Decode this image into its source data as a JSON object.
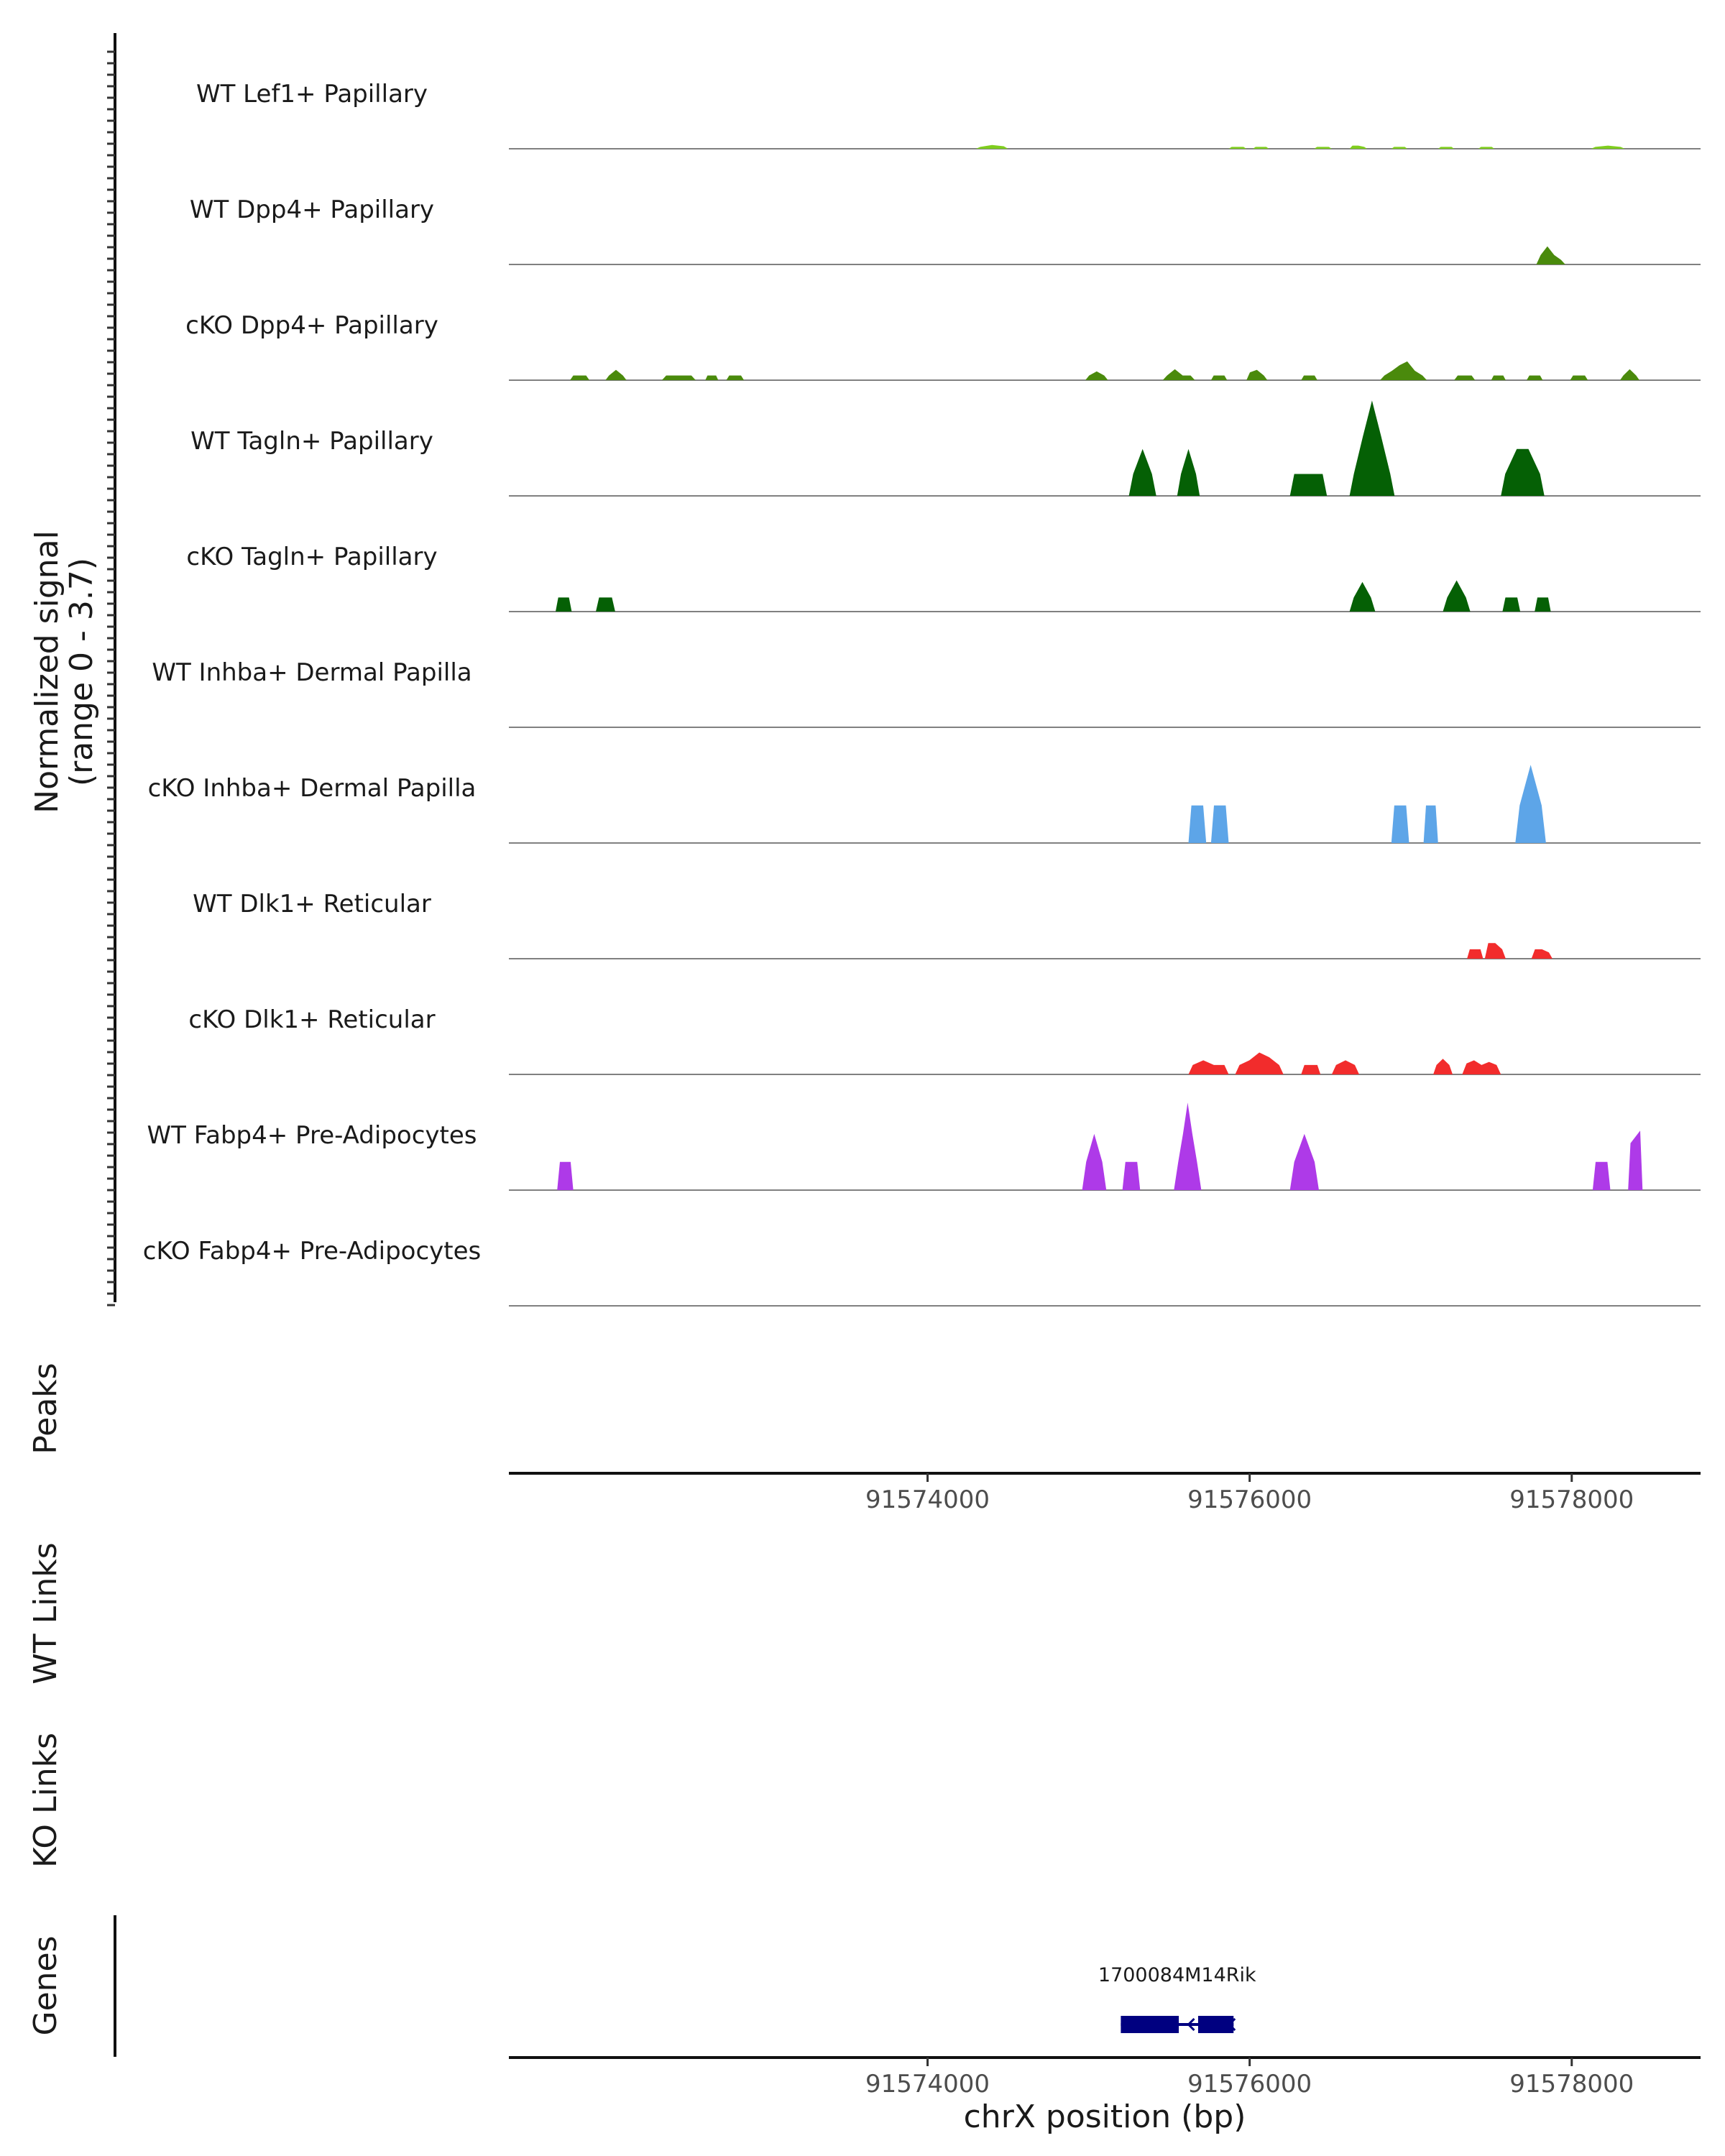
{
  "chart_data": {
    "type": "genome-coverage",
    "y_title": "Normalized signal",
    "y_range_label": "(range 0 - 3.7)",
    "y_range": [
      0,
      3.7
    ],
    "x_title": "chrX position (bp)",
    "xlim": [
      91571400,
      91578800
    ],
    "x_ticks": [
      91574000,
      91576000,
      91578000
    ],
    "x_tick_labels": [
      "91574000",
      "91576000",
      "91578000"
    ],
    "panels": {
      "peaks": "Peaks",
      "wt_links": "WT Links",
      "ko_links": "KO Links",
      "genes": "Genes"
    },
    "gene": {
      "name": "1700084M14Rik",
      "start": 91575200,
      "end": 91575900,
      "strand": "-",
      "exons": [
        [
          91575200,
          91575560
        ],
        [
          91575680,
          91575900
        ]
      ],
      "color": "#000080"
    },
    "tracks": [
      {
        "name": "WT Lef1+ Papillary",
        "color": "#7FCE1E",
        "regions": [
          {
            "start": 91574300,
            "end": 91574500,
            "values": [
              0.06,
              0.12,
              0.08
            ]
          },
          {
            "start": 91575870,
            "end": 91575980,
            "values": [
              0.06,
              0.06
            ]
          },
          {
            "start": 91576020,
            "end": 91576120,
            "values": [
              0.06,
              0.06
            ]
          },
          {
            "start": 91576400,
            "end": 91576510,
            "values": [
              0.06,
              0.06
            ]
          },
          {
            "start": 91576620,
            "end": 91576730,
            "values": [
              0.1,
              0.1,
              0.06
            ]
          },
          {
            "start": 91576880,
            "end": 91576980,
            "values": [
              0.06,
              0.06
            ]
          },
          {
            "start": 91577170,
            "end": 91577270,
            "values": [
              0.06,
              0.06
            ]
          },
          {
            "start": 91577420,
            "end": 91577520,
            "values": [
              0.06,
              0.06
            ]
          },
          {
            "start": 91578120,
            "end": 91578330,
            "values": [
              0.06,
              0.1,
              0.06
            ]
          }
        ]
      },
      {
        "name": "WT Dpp4+ Papillary",
        "color": "#4A8A0C",
        "regions": [
          {
            "start": 91577780,
            "end": 91577960,
            "values": [
              0.3,
              0.58,
              0.3,
              0.15
            ]
          }
        ]
      },
      {
        "name": "cKO Dpp4+ Papillary",
        "color": "#4A8A0C",
        "regions": [
          {
            "start": 91571780,
            "end": 91571900,
            "values": [
              0.15,
              0.15
            ]
          },
          {
            "start": 91572000,
            "end": 91572130,
            "values": [
              0.15,
              0.33,
              0.15
            ]
          },
          {
            "start": 91572350,
            "end": 91572560,
            "values": [
              0.15,
              0.15
            ]
          },
          {
            "start": 91572620,
            "end": 91572700,
            "values": [
              0.15,
              0.15
            ]
          },
          {
            "start": 91572750,
            "end": 91572860,
            "values": [
              0.15,
              0.15
            ]
          },
          {
            "start": 91574980,
            "end": 91575120,
            "values": [
              0.15,
              0.28,
              0.15
            ]
          },
          {
            "start": 91575460,
            "end": 91575660,
            "values": [
              0.15,
              0.35,
              0.15,
              0.15
            ]
          },
          {
            "start": 91575760,
            "end": 91575860,
            "values": [
              0.15,
              0.15
            ]
          },
          {
            "start": 91575980,
            "end": 91576110,
            "values": [
              0.25,
              0.33,
              0.15
            ]
          },
          {
            "start": 91576320,
            "end": 91576420,
            "values": [
              0.15,
              0.15
            ]
          },
          {
            "start": 91576810,
            "end": 91577100,
            "values": [
              0.15,
              0.3,
              0.48,
              0.6,
              0.3,
              0.15
            ]
          },
          {
            "start": 91577270,
            "end": 91577400,
            "values": [
              0.15,
              0.15
            ]
          },
          {
            "start": 91577500,
            "end": 91577590,
            "values": [
              0.15,
              0.15
            ]
          },
          {
            "start": 91577720,
            "end": 91577820,
            "values": [
              0.15,
              0.15
            ]
          },
          {
            "start": 91577990,
            "end": 91578100,
            "values": [
              0.15,
              0.15
            ]
          },
          {
            "start": 91578300,
            "end": 91578420,
            "values": [
              0.15,
              0.35,
              0.15
            ]
          }
        ]
      },
      {
        "name": "WT Tagln+ Papillary",
        "color": "#056005",
        "regions": [
          {
            "start": 91575250,
            "end": 91575420,
            "values": [
              0.7,
              1.5,
              0.7
            ]
          },
          {
            "start": 91575550,
            "end": 91575690,
            "values": [
              0.7,
              1.5,
              0.7
            ]
          },
          {
            "start": 91576250,
            "end": 91576480,
            "values": [
              0.7,
              0.7
            ]
          },
          {
            "start": 91576620,
            "end": 91576900,
            "values": [
              0.7,
              1.9,
              3.05,
              1.9,
              0.7
            ]
          },
          {
            "start": 91577560,
            "end": 91577830,
            "values": [
              0.7,
              1.5,
              1.5,
              0.7
            ]
          }
        ]
      },
      {
        "name": "cKO Tagln+ Papillary",
        "color": "#056005",
        "regions": [
          {
            "start": 91571690,
            "end": 91571790,
            "values": [
              0.45,
              0.45
            ]
          },
          {
            "start": 91571940,
            "end": 91572060,
            "values": [
              0.45,
              0.45
            ]
          },
          {
            "start": 91576620,
            "end": 91576780,
            "values": [
              0.45,
              0.95,
              0.45
            ]
          },
          {
            "start": 91577200,
            "end": 91577370,
            "values": [
              0.45,
              1.0,
              0.45
            ]
          },
          {
            "start": 91577570,
            "end": 91577680,
            "values": [
              0.45,
              0.45
            ]
          },
          {
            "start": 91577770,
            "end": 91577870,
            "values": [
              0.45,
              0.45
            ]
          }
        ]
      },
      {
        "name": "WT Inhba+ Dermal Papilla",
        "color": "#5DA5E8",
        "regions": []
      },
      {
        "name": "cKO Inhba+ Dermal Papilla",
        "color": "#5DA5E8",
        "regions": [
          {
            "start": 91575620,
            "end": 91575730,
            "values": [
              1.2,
              1.2
            ]
          },
          {
            "start": 91575760,
            "end": 91575870,
            "values": [
              1.2,
              1.2
            ]
          },
          {
            "start": 91576880,
            "end": 91576990,
            "values": [
              1.2,
              1.2
            ]
          },
          {
            "start": 91577080,
            "end": 91577170,
            "values": [
              1.2,
              1.2
            ]
          },
          {
            "start": 91577650,
            "end": 91577840,
            "values": [
              1.2,
              2.5,
              1.2
            ]
          }
        ]
      },
      {
        "name": "WT Dlk1+ Reticular",
        "color": "#F22C2C",
        "regions": [
          {
            "start": 91577350,
            "end": 91577450,
            "values": [
              0.3,
              0.3
            ]
          },
          {
            "start": 91577460,
            "end": 91577590,
            "values": [
              0.5,
              0.5,
              0.3
            ]
          },
          {
            "start": 91577750,
            "end": 91577880,
            "values": [
              0.3,
              0.3,
              0.2
            ]
          }
        ]
      },
      {
        "name": "cKO Dlk1+ Reticular",
        "color": "#F22C2C",
        "regions": [
          {
            "start": 91575620,
            "end": 91575870,
            "values": [
              0.3,
              0.45,
              0.3,
              0.3
            ]
          },
          {
            "start": 91575910,
            "end": 91576210,
            "values": [
              0.3,
              0.45,
              0.7,
              0.55,
              0.3
            ]
          },
          {
            "start": 91576320,
            "end": 91576440,
            "values": [
              0.3,
              0.3
            ]
          },
          {
            "start": 91576510,
            "end": 91576680,
            "values": [
              0.3,
              0.45,
              0.3
            ]
          },
          {
            "start": 91577140,
            "end": 91577260,
            "values": [
              0.3,
              0.5,
              0.3
            ]
          },
          {
            "start": 91577320,
            "end": 91577560,
            "values": [
              0.35,
              0.45,
              0.3,
              0.4,
              0.3
            ]
          }
        ]
      },
      {
        "name": "WT Fabp4+ Pre-Adipocytes",
        "color": "#AE3AE8",
        "regions": [
          {
            "start": 91571700,
            "end": 91571800,
            "values": [
              0.9,
              0.9
            ]
          },
          {
            "start": 91574960,
            "end": 91575110,
            "values": [
              0.9,
              1.8,
              0.9
            ]
          },
          {
            "start": 91575210,
            "end": 91575320,
            "values": [
              0.9,
              0.9
            ]
          },
          {
            "start": 91575530,
            "end": 91575700,
            "values": [
              0.9,
              1.8,
              2.8,
              1.8,
              0.9
            ]
          },
          {
            "start": 91576250,
            "end": 91576430,
            "values": [
              0.9,
              1.8,
              0.9
            ]
          },
          {
            "start": 91578130,
            "end": 91578240,
            "values": [
              0.9,
              0.9
            ]
          },
          {
            "start": 91578350,
            "end": 91578440,
            "values": [
              1.5,
              1.9
            ]
          }
        ]
      },
      {
        "name": "cKO Fabp4+ Pre-Adipocytes",
        "color": "#AE3AE8",
        "regions": []
      }
    ]
  }
}
